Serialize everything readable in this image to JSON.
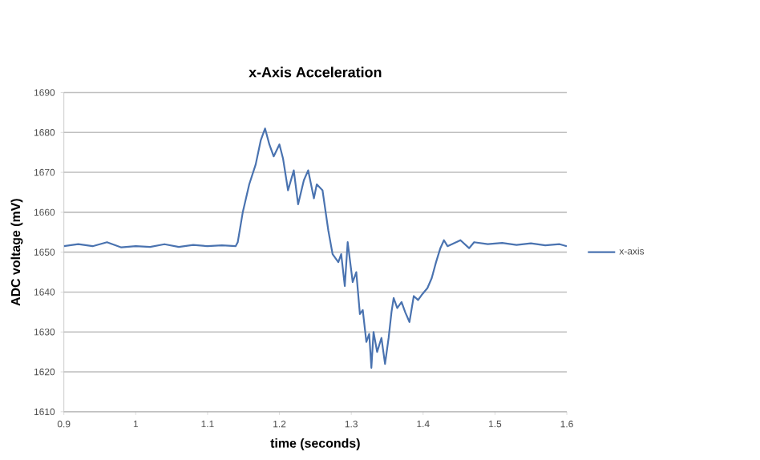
{
  "chart_data": {
    "type": "line",
    "title": "x-Axis Acceleration",
    "xlabel": "time (seconds)",
    "ylabel": "ADC voltage (mV)",
    "xlim": [
      0.9,
      1.6
    ],
    "ylim": [
      1610,
      1690
    ],
    "xticks": [
      0.9,
      1,
      1.1,
      1.2,
      1.3,
      1.4,
      1.5,
      1.6
    ],
    "yticks": [
      1610,
      1620,
      1630,
      1640,
      1650,
      1660,
      1670,
      1680,
      1690
    ],
    "grid": "y",
    "legend": "right",
    "marker": "none",
    "line_style": "solid",
    "series": [
      {
        "name": "x-axis",
        "color": "#4a73b0",
        "x": [
          0.9,
          0.92,
          0.94,
          0.96,
          0.98,
          1.0,
          1.02,
          1.04,
          1.06,
          1.08,
          1.1,
          1.12,
          1.139,
          1.142,
          1.149,
          1.158,
          1.167,
          1.174,
          1.18,
          1.186,
          1.192,
          1.2,
          1.205,
          1.212,
          1.22,
          1.226,
          1.234,
          1.24,
          1.248,
          1.252,
          1.26,
          1.268,
          1.274,
          1.282,
          1.286,
          1.291,
          1.295,
          1.302,
          1.307,
          1.312,
          1.316,
          1.321,
          1.325,
          1.328,
          1.331,
          1.336,
          1.342,
          1.347,
          1.352,
          1.356,
          1.359,
          1.364,
          1.37,
          1.375,
          1.381,
          1.387,
          1.393,
          1.399,
          1.406,
          1.412,
          1.418,
          1.424,
          1.429,
          1.434,
          1.446,
          1.452,
          1.464,
          1.471,
          1.49,
          1.51,
          1.53,
          1.55,
          1.57,
          1.59,
          1.6
        ],
        "values": [
          1651.5,
          1652,
          1651.5,
          1652.5,
          1651.2,
          1651.5,
          1651.3,
          1652,
          1651.3,
          1651.8,
          1651.5,
          1651.7,
          1651.5,
          1652.5,
          1660,
          1667,
          1672,
          1678,
          1681,
          1677,
          1674,
          1677,
          1673.5,
          1665.5,
          1670.5,
          1662,
          1668,
          1670.5,
          1663.5,
          1667,
          1665.5,
          1655.5,
          1649.5,
          1647.5,
          1649.5,
          1641.5,
          1652.5,
          1642.5,
          1645,
          1634.5,
          1635.5,
          1627.5,
          1629.5,
          1621,
          1630,
          1625,
          1628.5,
          1622,
          1628.5,
          1635,
          1638.5,
          1636,
          1637.5,
          1635,
          1632.5,
          1639,
          1638,
          1639.5,
          1641,
          1643.5,
          1647.5,
          1651,
          1653,
          1651.5,
          1652.5,
          1653,
          1651,
          1652.5,
          1652,
          1652.3,
          1651.8,
          1652.2,
          1651.7,
          1652,
          1651.5
        ]
      }
    ]
  }
}
